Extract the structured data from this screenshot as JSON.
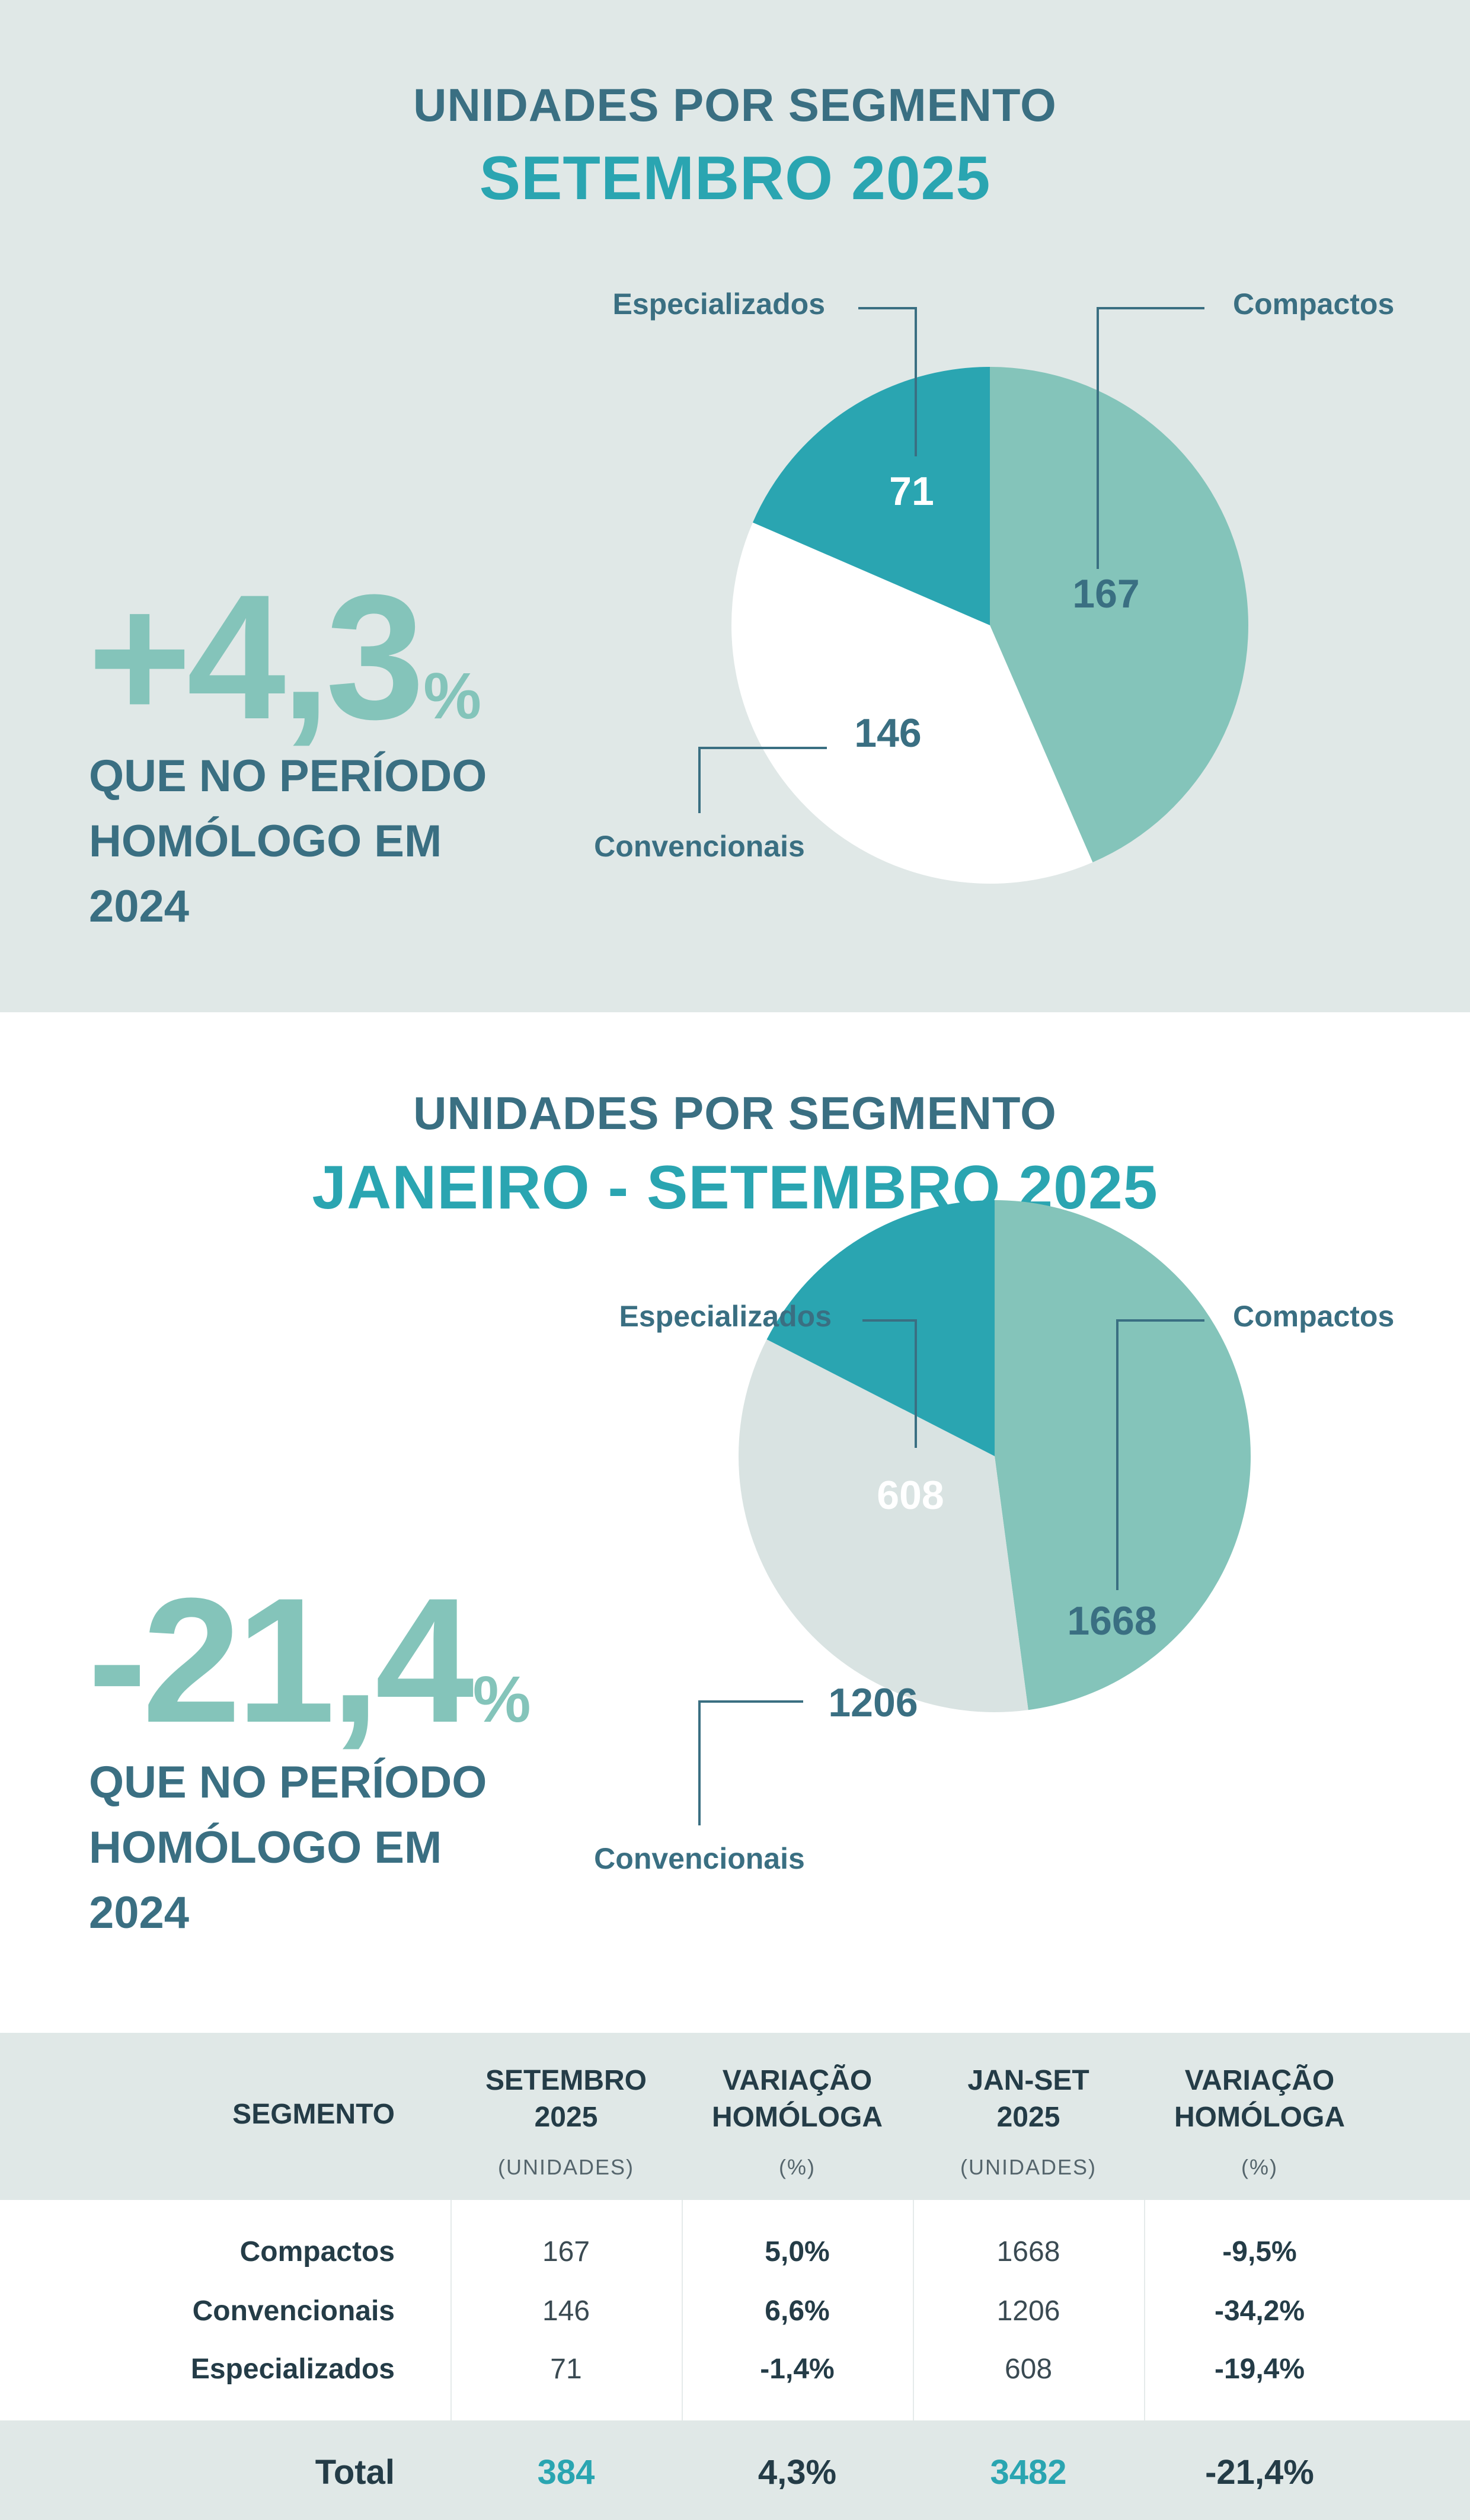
{
  "colors": {
    "compactos": "#84c4ba",
    "convencionais_sep": "#ffffff",
    "convencionais_ytd": "#d9e3e2",
    "especializados": "#2aa5b1",
    "label": "#3a6f82",
    "accent": "#2aa5b1",
    "big_number": "#84c4ba"
  },
  "section1": {
    "title_top": "UNIDADES POR SEGMENTO",
    "title_main": "SETEMBRO 2025",
    "big_number": "+4,3",
    "big_symbol": "%",
    "sub_lines": [
      "QUE NO PERÍODO",
      "HOMÓLOGO EM",
      "2024"
    ]
  },
  "section2": {
    "title_top": "UNIDADES POR SEGMENTO",
    "title_main": "JANEIRO - SETEMBRO 2025",
    "big_number": "-21,4",
    "big_symbol": "%",
    "sub_lines": [
      "QUE NO PERÍODO",
      "HOMÓLOGO EM",
      "2024"
    ]
  },
  "chart_data": [
    {
      "type": "pie",
      "title": "SETEMBRO 2025",
      "categories": [
        "Compactos",
        "Convencionais",
        "Especializados"
      ],
      "values": [
        167,
        146,
        71
      ],
      "data_labels": [
        "167",
        "146",
        "71"
      ]
    },
    {
      "type": "pie",
      "title": "JANEIRO - SETEMBRO 2025",
      "categories": [
        "Compactos",
        "Convencionais",
        "Especializados"
      ],
      "values": [
        1668,
        1206,
        608
      ],
      "data_labels": [
        "1668",
        "1206",
        "608"
      ]
    }
  ],
  "table": {
    "headers": {
      "segment": "SEGMENTO",
      "sep_l1": "SETEMBRO",
      "sep_l2": "2025",
      "sep_unit": "(UNIDADES)",
      "var1_l1": "VARIAÇÃO",
      "var1_l2": "HOMÓLOGA",
      "var1_unit": "(%)",
      "ytd_l1": "JAN-SET",
      "ytd_l2": "2025",
      "ytd_unit": "(UNIDADES)",
      "var2_l1": "VARIAÇÃO",
      "var2_l2": "HOMÓLOGA",
      "var2_unit": "(%)"
    },
    "rows": [
      {
        "segment": "Compactos",
        "sep": "167",
        "var1": "5,0%",
        "ytd": "1668",
        "var2": "-9,5%"
      },
      {
        "segment": "Convencionais",
        "sep": "146",
        "var1": "6,6%",
        "ytd": "1206",
        "var2": "-34,2%"
      },
      {
        "segment": "Especializados",
        "sep": "71",
        "var1": "-1,4%",
        "ytd": "608",
        "var2": "-19,4%"
      }
    ],
    "total": {
      "label": "Total",
      "sep": "384",
      "var1": "4,3%",
      "ytd": "3482",
      "var2": "-21,4%"
    }
  }
}
